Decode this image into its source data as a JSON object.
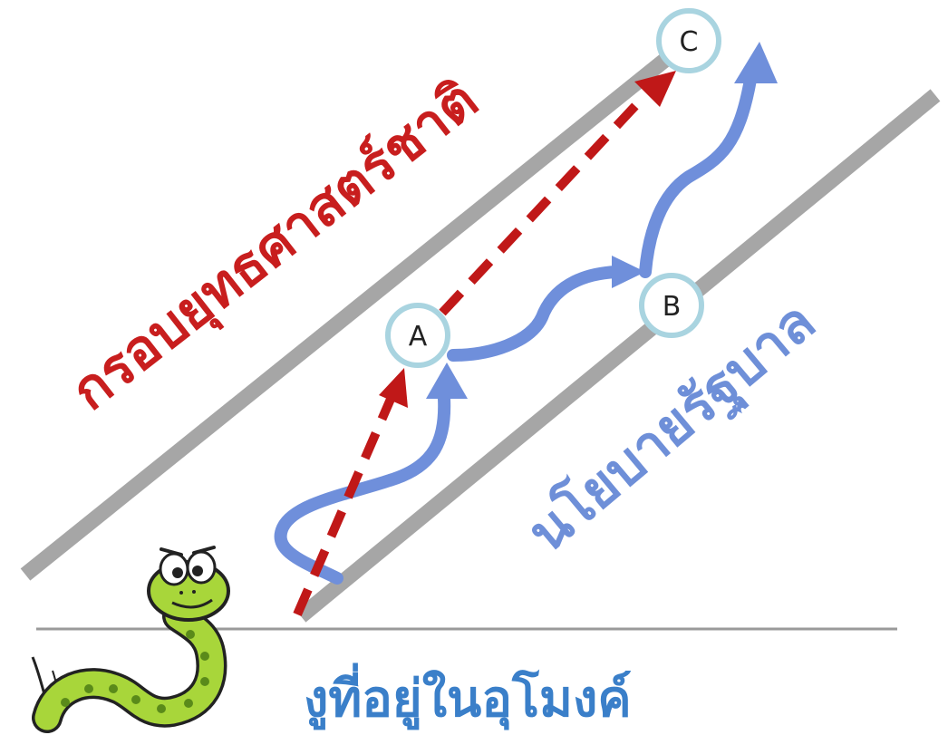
{
  "labels": {
    "framework": "กรอบยุทธศาสตร์ชาติ",
    "policy": "นโยบายรัฐบาล",
    "caption": "งูที่อยู่ในอุโมงค์"
  },
  "nodes": {
    "a": "A",
    "b": "B",
    "c": "C"
  },
  "colors": {
    "framework_text": "#c81e1e",
    "dashed_arrow": "#c01818",
    "policy_text": "#6e8fd8",
    "wavy_arrow": "#6f8fdb",
    "caption_text": "#3a7fc9",
    "tunnel_walls": "#a6a6a6",
    "ground_line": "#9a9a9a",
    "node_ring": "#a9d4e0",
    "snake_body": "#a8d63a",
    "snake_spots": "#5a8a1a"
  }
}
